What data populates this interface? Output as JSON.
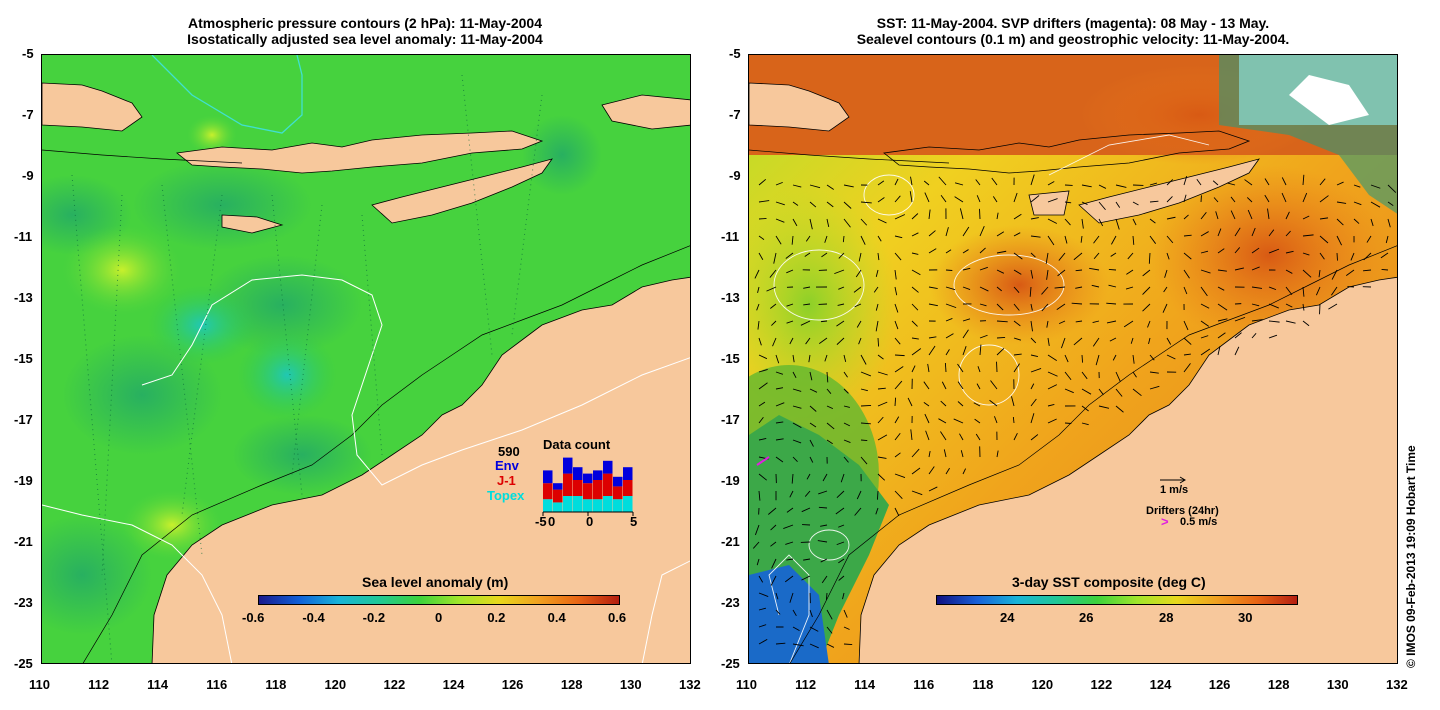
{
  "left_panel": {
    "title_line1": "Atmospheric pressure contours (2 hPa): 11-May-2004",
    "title_line2": "Isostatically adjusted sea level anomaly: 11-May-2004",
    "colorbar": {
      "title": "Sea level anomaly (m)",
      "labels": [
        "-0.6",
        "-0.4",
        "-0.2",
        "0",
        "0.2",
        "0.4",
        "0.6"
      ]
    },
    "data_count": {
      "title": "Data count",
      "total": "590",
      "series": [
        "Env",
        "J-1",
        "Topex"
      ],
      "series_colors": [
        "#0000dd",
        "#dd0000",
        "#00dddd"
      ],
      "x_labels": [
        "-5",
        "0",
        "0",
        "5"
      ],
      "bars": [
        {
          "topex": 4,
          "j1": 5,
          "env": 4
        },
        {
          "topex": 3,
          "j1": 4,
          "env": 2
        },
        {
          "topex": 5,
          "j1": 7,
          "env": 5
        },
        {
          "topex": 5,
          "j1": 5,
          "env": 4
        },
        {
          "topex": 4,
          "j1": 5,
          "env": 3
        },
        {
          "topex": 4,
          "j1": 6,
          "env": 3
        },
        {
          "topex": 5,
          "j1": 7,
          "env": 4
        },
        {
          "topex": 4,
          "j1": 4,
          "env": 3
        },
        {
          "topex": 5,
          "j1": 5,
          "env": 4
        }
      ]
    }
  },
  "right_panel": {
    "title_line1": "SST: 11-May-2004. SVP drifters (magenta): 08 May - 13 May.",
    "title_line2": "Sealevel contours (0.1 m) and geostrophic velocity: 11-May-2004.",
    "colorbar": {
      "title": "3-day SST composite (deg C)",
      "labels": [
        "24",
        "26",
        "28",
        "30"
      ]
    },
    "scale_label": "1 m/s",
    "drifters_label": "Drifters (24hr)",
    "drifters_speed": "0.5 m/s",
    "drifter_symbol": ">"
  },
  "axes": {
    "lat_labels": [
      "-5",
      "-7",
      "-9",
      "-11",
      "-13",
      "-15",
      "-17",
      "-19",
      "-21",
      "-23",
      "-25"
    ],
    "lon_labels": [
      "110",
      "112",
      "114",
      "116",
      "118",
      "120",
      "122",
      "124",
      "126",
      "128",
      "130",
      "132"
    ]
  },
  "copyright": "© IMOS 09-Feb-2013 19:09 Hobart Time",
  "colors": {
    "land": "#f7c89c",
    "ocean_left": "#3cd23c",
    "ocean_right": "#e8a818"
  }
}
